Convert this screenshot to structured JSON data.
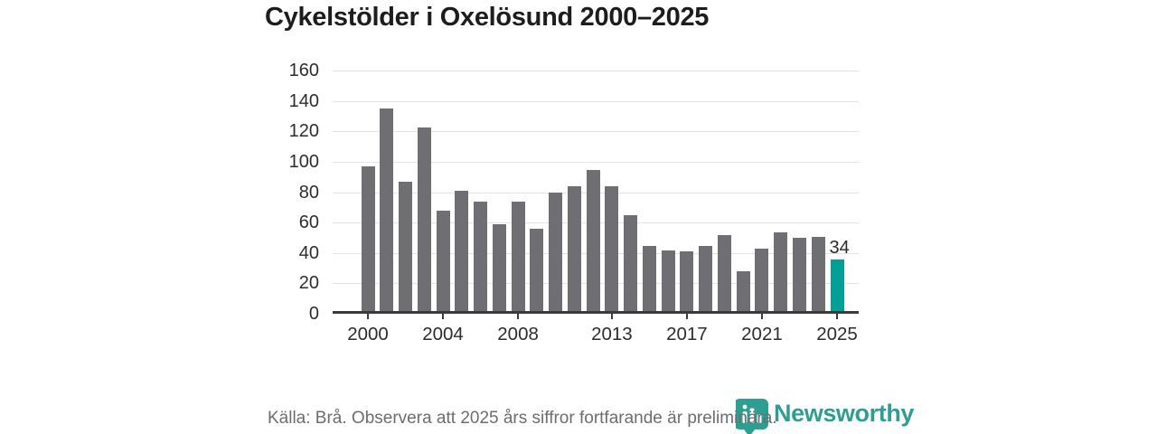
{
  "title": "Cykelstölder i Oxelösund 2000–2025",
  "colors": {
    "bar": "#6f6f73",
    "highlight_bar": "#00a096",
    "axis": "#3a3a3a",
    "gridline": "#e3e3e3",
    "brand_teal": "#2e9e92"
  },
  "chart_data": {
    "type": "bar",
    "title": "Cykelstölder i Oxelösund 2000–2025",
    "x": [
      2000,
      2001,
      2002,
      2003,
      2004,
      2005,
      2006,
      2007,
      2008,
      2009,
      2010,
      2011,
      2012,
      2013,
      2014,
      2015,
      2016,
      2017,
      2018,
      2019,
      2020,
      2021,
      2022,
      2023,
      2024,
      2025
    ],
    "values": [
      95,
      133,
      85,
      121,
      66,
      79,
      72,
      57,
      72,
      54,
      78,
      82,
      93,
      82,
      63,
      43,
      40,
      39,
      43,
      50,
      26,
      41,
      52,
      48,
      49,
      34
    ],
    "xlabel": "",
    "ylabel": "",
    "ylim": [
      0,
      160
    ],
    "yticks": [
      0,
      20,
      40,
      60,
      80,
      100,
      120,
      140,
      160
    ],
    "xticks": [
      2000,
      2004,
      2008,
      2013,
      2017,
      2021,
      2025
    ],
    "grid": true,
    "legend": false,
    "highlight_index": 25,
    "annotation": {
      "index": 25,
      "text": "34"
    }
  },
  "footer": {
    "source_note": "Källa: Brå. Observera att 2025 års siffror fortfarande är preliminära.",
    "brand": "Newsworthy"
  }
}
